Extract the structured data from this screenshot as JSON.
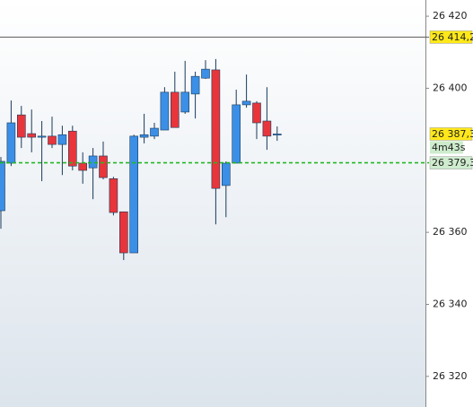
{
  "chart_data": {
    "type": "candlestick",
    "open": [
      26366.0,
      26379.2,
      26392.6,
      26387.4,
      26386.4,
      26386.7,
      26384.4,
      26388.1,
      26379.2,
      26377.9,
      26381.2,
      26374.9,
      26365.7,
      26354.3,
      26386.4,
      26386.7,
      26388.4,
      26398.9,
      26393.4,
      26398.4,
      26402.8,
      26405.1,
      26373.0,
      26379.2,
      26395.4,
      26395.9,
      26390.9,
      26387.0
    ],
    "high": [
      26380.9,
      26396.6,
      26395.1,
      26394.1,
      26390.9,
      26392.1,
      26389.6,
      26389.6,
      26382.2,
      26383.4,
      26385.2,
      26375.4,
      26365.7,
      26387.1,
      26392.9,
      26390.4,
      26400.3,
      26404.6,
      26407.6,
      26404.6,
      26407.8,
      26408.1,
      26379.7,
      26399.6,
      26403.8,
      26396.4,
      26400.3,
      26389.4
    ],
    "low": [
      26361.0,
      26378.4,
      26383.4,
      26382.2,
      26374.2,
      26383.4,
      26375.9,
      26377.2,
      26373.5,
      26369.2,
      26374.7,
      26364.7,
      26352.3,
      26354.3,
      26384.7,
      26385.9,
      26388.4,
      26389.1,
      26392.9,
      26391.6,
      26402.6,
      26362.2,
      26364.2,
      26379.2,
      26394.6,
      26385.9,
      26382.9,
      26385.4
    ],
    "close": [
      26379.7,
      26390.4,
      26386.4,
      26386.4,
      26386.7,
      26384.4,
      26387.1,
      26378.4,
      26377.2,
      26381.2,
      26375.2,
      26365.5,
      26354.3,
      26386.7,
      26387.1,
      26388.9,
      26398.9,
      26389.1,
      26398.9,
      26403.3,
      26405.3,
      26372.2,
      26379.2,
      26395.4,
      26396.4,
      26390.4,
      26386.7,
      26387.3
    ],
    "up_color": "#3b8fe6",
    "down_color": "#e8353b",
    "ylim": [
      26311.5,
      26424.5
    ],
    "yticks": [
      {
        "value": 26420,
        "label": "26 420"
      },
      {
        "value": 26400,
        "label": "26 400"
      },
      {
        "value": 26360,
        "label": "26 360"
      },
      {
        "value": 26340,
        "label": "26 340"
      },
      {
        "value": 26320,
        "label": "26 320"
      }
    ],
    "levels": [
      {
        "value": 26414.2,
        "label": "26 414,2",
        "line": "solid",
        "color": "#5a5a5a",
        "label_bg": "#ffe81a"
      },
      {
        "value": 26387.3,
        "label": "26 387,3",
        "line": "none",
        "color": "#5a5a5a",
        "label_bg": "#ffe81a"
      },
      {
        "value": 26379.3,
        "label": "26 379,3",
        "line": "dashed",
        "color": "#22b822",
        "label_bg": "#cfeccf"
      }
    ],
    "countdown": "4m43s"
  }
}
